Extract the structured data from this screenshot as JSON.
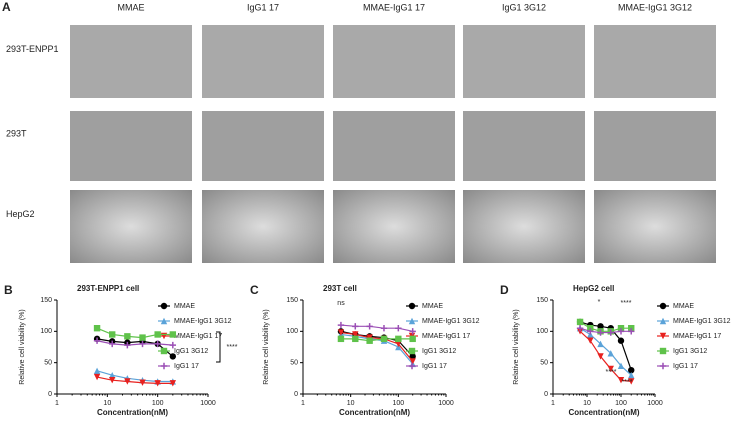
{
  "panel_a": {
    "label": "A",
    "columns": [
      "MMAE",
      "IgG1 17",
      "MMAE-IgG1 17",
      "IgG1 3G12",
      "MMAE-IgG1 3G12"
    ],
    "rows": [
      "293T-ENPP1",
      "293T",
      "HepG2"
    ]
  },
  "chart_data": [
    {
      "type": "line",
      "label": "B",
      "title": "293T-ENPP1 cell",
      "x_label": "Concentration(nM)",
      "y_label": "Relative cell viability (%)",
      "x": [
        6.25,
        12.5,
        25,
        50,
        100,
        200
      ],
      "x_scale": "log",
      "xlim": [
        1,
        1000
      ],
      "xticks": [
        1,
        10,
        100,
        1000
      ],
      "ylim": [
        0,
        150
      ],
      "yticks": [
        0,
        50,
        100,
        150
      ],
      "series": [
        {
          "name": "MMAE",
          "color": "#000000",
          "marker": "circle",
          "values": [
            88,
            84,
            82,
            84,
            80,
            60
          ]
        },
        {
          "name": "MMAE-IgG1 3G12",
          "color": "#5ba3d9",
          "marker": "triangle",
          "values": [
            37,
            30,
            25,
            22,
            20,
            20
          ]
        },
        {
          "name": "MMAE-IgG1 17",
          "color": "#e8211f",
          "marker": "triangle-down",
          "values": [
            27,
            22,
            20,
            18,
            17,
            17
          ]
        },
        {
          "name": "IgG1 3G12",
          "color": "#5fc24a",
          "marker": "square",
          "values": [
            105,
            95,
            92,
            90,
            95,
            95
          ]
        },
        {
          "name": "IgG1 17",
          "color": "#9b4fb5",
          "marker": "cross",
          "values": [
            85,
            80,
            78,
            80,
            80,
            78
          ]
        }
      ],
      "annotations": [
        {
          "text": "****",
          "color": "#000000"
        }
      ]
    },
    {
      "type": "line",
      "label": "C",
      "title": "293T cell",
      "x_label": "Concentration(nM)",
      "y_label": "Relative cell viability (%)",
      "x": [
        6.25,
        12.5,
        25,
        50,
        100,
        200
      ],
      "x_scale": "log",
      "xlim": [
        1,
        1000
      ],
      "xticks": [
        1,
        10,
        100,
        1000
      ],
      "ylim": [
        0,
        150
      ],
      "yticks": [
        0,
        50,
        100,
        150
      ],
      "series": [
        {
          "name": "MMAE",
          "color": "#000000",
          "marker": "circle",
          "values": [
            100,
            95,
            92,
            90,
            85,
            60
          ]
        },
        {
          "name": "MMAE-IgG1 3G12",
          "color": "#5ba3d9",
          "marker": "triangle",
          "values": [
            95,
            92,
            88,
            85,
            75,
            48
          ]
        },
        {
          "name": "MMAE-IgG1 17",
          "color": "#e8211f",
          "marker": "triangle-down",
          "values": [
            98,
            95,
            90,
            88,
            80,
            52
          ]
        },
        {
          "name": "IgG1 3G12",
          "color": "#5fc24a",
          "marker": "square",
          "values": [
            88,
            88,
            85,
            88,
            88,
            88
          ]
        },
        {
          "name": "IgG1 17",
          "color": "#9b4fb5",
          "marker": "cross",
          "values": [
            110,
            108,
            108,
            105,
            105,
            100
          ]
        }
      ],
      "annotations": [
        {
          "text": "ns",
          "color": "#000000"
        }
      ]
    },
    {
      "type": "line",
      "label": "D",
      "title": "HepG2 cell",
      "x_label": "Concentration(nM)",
      "y_label": "Relative cell viability (%)",
      "x": [
        6.25,
        12.5,
        25,
        50,
        100,
        200
      ],
      "x_scale": "log",
      "xlim": [
        1,
        1000
      ],
      "xticks": [
        1,
        10,
        100,
        1000
      ],
      "ylim": [
        0,
        150
      ],
      "yticks": [
        0,
        50,
        100,
        150
      ],
      "series": [
        {
          "name": "MMAE",
          "color": "#000000",
          "marker": "circle",
          "values": [
            115,
            110,
            108,
            105,
            85,
            38
          ]
        },
        {
          "name": "MMAE-IgG1 3G12",
          "color": "#5ba3d9",
          "marker": "triangle",
          "values": [
            105,
            95,
            80,
            65,
            45,
            30
          ]
        },
        {
          "name": "MMAE-IgG1 17",
          "color": "#e8211f",
          "marker": "triangle-down",
          "values": [
            100,
            85,
            60,
            40,
            22,
            20
          ]
        },
        {
          "name": "IgG1 3G12",
          "color": "#5fc24a",
          "marker": "square",
          "values": [
            115,
            105,
            100,
            100,
            105,
            105
          ]
        },
        {
          "name": "IgG1 17",
          "color": "#9b4fb5",
          "marker": "cross",
          "values": [
            105,
            100,
            98,
            98,
            100,
            100
          ]
        }
      ],
      "annotations": [
        {
          "text": "*",
          "color": "#5ba3d9"
        },
        {
          "text": "****",
          "color": "#5ba3d9"
        },
        {
          "text": "****",
          "color": "#e8211f"
        },
        {
          "text": "****",
          "color": "#e8211f"
        }
      ]
    }
  ]
}
